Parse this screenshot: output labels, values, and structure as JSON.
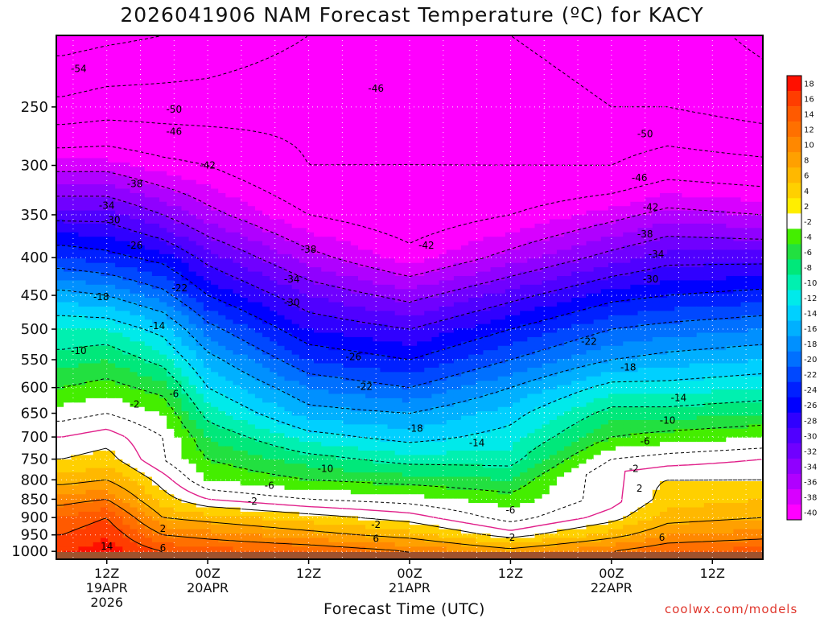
{
  "title": "2026041906 NAM Forecast Temperature (ºC) for KACY",
  "credit": "coolwx.com/models",
  "chart_data": {
    "type": "heatmap",
    "title": "2026041906 NAM Forecast Temperature (ºC) for KACY",
    "xlabel": "Forecast Time (UTC)",
    "ylabel": "",
    "y_scale": "log-pressure (hPa), inverted",
    "y_ticks": [
      250,
      300,
      350,
      400,
      450,
      500,
      550,
      600,
      650,
      700,
      750,
      800,
      850,
      900,
      950,
      1000
    ],
    "y_range": [
      1025,
      200
    ],
    "x_ticks": [
      {
        "hour": 12,
        "lines": [
          "12Z",
          "19APR",
          "2026"
        ]
      },
      {
        "hour": 30,
        "lines": [
          "00Z",
          "20APR"
        ]
      },
      {
        "hour": 48,
        "lines": [
          "12Z"
        ]
      },
      {
        "hour": 66,
        "lines": [
          "00Z",
          "21APR"
        ]
      },
      {
        "hour": 84,
        "lines": [
          "12Z"
        ]
      },
      {
        "hour": 102,
        "lines": [
          "00Z",
          "22APR"
        ]
      },
      {
        "hour": 120,
        "lines": [
          "12Z"
        ]
      }
    ],
    "x_range": [
      3,
      129
    ],
    "grid": true,
    "colorbar_labels": [
      "18",
      "16",
      "14",
      "12",
      "10",
      "8",
      "6",
      "4",
      "2",
      "-2",
      "-4",
      "-6",
      "-8",
      "-10",
      "-12",
      "-14",
      "-16",
      "-18",
      "-20",
      "-22",
      "-24",
      "-26",
      "-28",
      "-30",
      "-32",
      "-34",
      "-36",
      "-38",
      "-40"
    ],
    "colorbar_colors": [
      "#ff1000",
      "#ff3d00",
      "#ff5a00",
      "#ff7000",
      "#ff8800",
      "#ffa000",
      "#ffb800",
      "#ffd000",
      "#ffee00",
      "#ffffff",
      "#44ee00",
      "#22e040",
      "#00e87a",
      "#00f0b0",
      "#00eaea",
      "#00d0ff",
      "#00b0ff",
      "#0090ff",
      "#0070ff",
      "#0048ff",
      "#0020ff",
      "#0000ff",
      "#3000ff",
      "#5000ff",
      "#7000ff",
      "#9000ff",
      "#b000ff",
      "#d800ff",
      "#ff00ff"
    ],
    "isotherm_profiles": [
      {
        "hour": 4,
        "temps": {
          "1000": 16,
          "950": 14,
          "900": 12,
          "850": 9,
          "800": 5,
          "750": 2,
          "700": 0,
          "650": -3,
          "600": -6,
          "550": -9,
          "500": -12,
          "450": -17,
          "400": -24,
          "350": -31,
          "300": -39,
          "250": -49,
          "200": -56
        }
      },
      {
        "hour": 12,
        "temps": {
          "1000": 17,
          "950": 16,
          "900": 14,
          "850": 10,
          "800": 6,
          "750": 3,
          "700": 1,
          "650": -2,
          "600": -5,
          "550": -8,
          "500": -12,
          "450": -18,
          "400": -25,
          "350": -31,
          "300": -39,
          "250": -48,
          "200": -55
        }
      },
      {
        "hour": 22,
        "temps": {
          "1000": 14,
          "950": 10,
          "900": 6,
          "850": 3,
          "800": 1,
          "750": -2,
          "700": -2,
          "650": -4,
          "600": -7,
          "550": -11,
          "500": -15,
          "450": -21,
          "400": -27,
          "350": -34,
          "300": -41,
          "250": -48,
          "200": -54
        }
      },
      {
        "hour": 30,
        "temps": {
          "1000": 13,
          "950": 9,
          "900": 5,
          "850": 0,
          "800": -4,
          "750": -6,
          "700": -8,
          "650": -11,
          "600": -14,
          "550": -17,
          "500": -21,
          "450": -26,
          "400": -31,
          "350": -37,
          "300": -42,
          "250": -48,
          "200": -53
        }
      },
      {
        "hour": 48,
        "temps": {
          "1000": 12,
          "950": 7,
          "900": 3,
          "850": -2,
          "800": -6,
          "750": -9,
          "700": -13,
          "650": -17,
          "600": -20,
          "550": -24,
          "500": -28,
          "450": -32,
          "400": -37,
          "350": -42,
          "300": -46,
          "250": -47,
          "200": -50
        }
      },
      {
        "hour": 66,
        "temps": {
          "1000": 10,
          "950": 5,
          "900": 1,
          "850": -3,
          "800": -7,
          "750": -11,
          "700": -15,
          "650": -18,
          "600": -22,
          "550": -26,
          "500": -30,
          "450": -35,
          "400": -41,
          "350": -44,
          "300": -46,
          "250": -46,
          "200": -48
        }
      },
      {
        "hour": 84,
        "temps": {
          "1000": 7,
          "950": 1,
          "900": -3,
          "850": -5,
          "800": -8,
          "750": -11,
          "700": -13,
          "650": -15,
          "600": -18,
          "550": -22,
          "500": -26,
          "450": -31,
          "400": -37,
          "350": -42,
          "300": -46,
          "250": -48,
          "200": -50
        }
      },
      {
        "hour": 102,
        "temps": {
          "1000": 10,
          "950": 5,
          "900": 1,
          "850": -1,
          "800": 1,
          "750": -2,
          "700": -6,
          "650": -9,
          "600": -13,
          "550": -18,
          "500": -22,
          "450": -27,
          "400": -33,
          "350": -39,
          "300": -46,
          "250": -50,
          "200": -52
        }
      },
      {
        "hour": 112,
        "temps": {
          "1000": 12,
          "950": 8,
          "900": 5,
          "850": 3,
          "800": 2,
          "750": -1,
          "700": -5,
          "650": -9,
          "600": -13,
          "550": -17,
          "500": -21,
          "450": -26,
          "400": -31,
          "350": -37,
          "300": -44,
          "250": -50,
          "200": -52
        }
      },
      {
        "hour": 129,
        "temps": {
          "1000": 13,
          "950": 9,
          "900": 6,
          "850": 4,
          "800": 2,
          "750": 0,
          "700": -4,
          "650": -8,
          "600": -12,
          "550": -16,
          "500": -20,
          "450": -25,
          "400": -31,
          "350": -38,
          "300": -45,
          "250": -52,
          "200": -55
        }
      }
    ],
    "contour_labels": [
      {
        "text": "-54",
        "hour": 7,
        "p": 222
      },
      {
        "text": "-50",
        "hour": 24,
        "p": 252
      },
      {
        "text": "-46",
        "hour": 24,
        "p": 270
      },
      {
        "text": "-42",
        "hour": 30,
        "p": 300
      },
      {
        "text": "-38",
        "hour": 17,
        "p": 318
      },
      {
        "text": "-34",
        "hour": 12,
        "p": 340
      },
      {
        "text": "-30",
        "hour": 13,
        "p": 356
      },
      {
        "text": "-26",
        "hour": 17,
        "p": 385
      },
      {
        "text": "-22",
        "hour": 25,
        "p": 440
      },
      {
        "text": "-18",
        "hour": 11,
        "p": 452
      },
      {
        "text": "-14",
        "hour": 21,
        "p": 495
      },
      {
        "text": "-10",
        "hour": 7,
        "p": 535
      },
      {
        "text": "-6",
        "hour": 24,
        "p": 612
      },
      {
        "text": "-2",
        "hour": 17,
        "p": 632
      },
      {
        "text": "14",
        "hour": 12,
        "p": 985
      },
      {
        "text": "6",
        "hour": 22,
        "p": 990
      },
      {
        "text": "2",
        "hour": 22,
        "p": 932
      },
      {
        "text": "-46",
        "hour": 60,
        "p": 236
      },
      {
        "text": "-38",
        "hour": 48,
        "p": 390
      },
      {
        "text": "-42",
        "hour": 69,
        "p": 385
      },
      {
        "text": "-34",
        "hour": 45,
        "p": 428
      },
      {
        "text": "-30",
        "hour": 45,
        "p": 460
      },
      {
        "text": "-26",
        "hour": 56,
        "p": 545
      },
      {
        "text": "-22",
        "hour": 58,
        "p": 598
      },
      {
        "text": "-18",
        "hour": 67,
        "p": 682
      },
      {
        "text": "-14",
        "hour": 78,
        "p": 713
      },
      {
        "text": "-10",
        "hour": 51,
        "p": 773
      },
      {
        "text": "-6",
        "hour": 41,
        "p": 815
      },
      {
        "text": "-2",
        "hour": 38,
        "p": 855
      },
      {
        "text": "-2",
        "hour": 60,
        "p": 920
      },
      {
        "text": "-6",
        "hour": 84,
        "p": 880
      },
      {
        "text": "-2",
        "hour": 84,
        "p": 958
      },
      {
        "text": "6",
        "hour": 60,
        "p": 962
      },
      {
        "text": "-50",
        "hour": 108,
        "p": 272
      },
      {
        "text": "-46",
        "hour": 107,
        "p": 312
      },
      {
        "text": "-42",
        "hour": 109,
        "p": 342
      },
      {
        "text": "-38",
        "hour": 108,
        "p": 372
      },
      {
        "text": "-34",
        "hour": 110,
        "p": 396
      },
      {
        "text": "-30",
        "hour": 109,
        "p": 428
      },
      {
        "text": "-22",
        "hour": 98,
        "p": 520
      },
      {
        "text": "-18",
        "hour": 105,
        "p": 563
      },
      {
        "text": "-14",
        "hour": 114,
        "p": 620
      },
      {
        "text": "-10",
        "hour": 112,
        "p": 665
      },
      {
        "text": "-6",
        "hour": 108,
        "p": 710
      },
      {
        "text": "-2",
        "hour": 106,
        "p": 773
      },
      {
        "text": "2",
        "hour": 107,
        "p": 822
      },
      {
        "text": "6",
        "hour": 111,
        "p": 958
      }
    ]
  }
}
